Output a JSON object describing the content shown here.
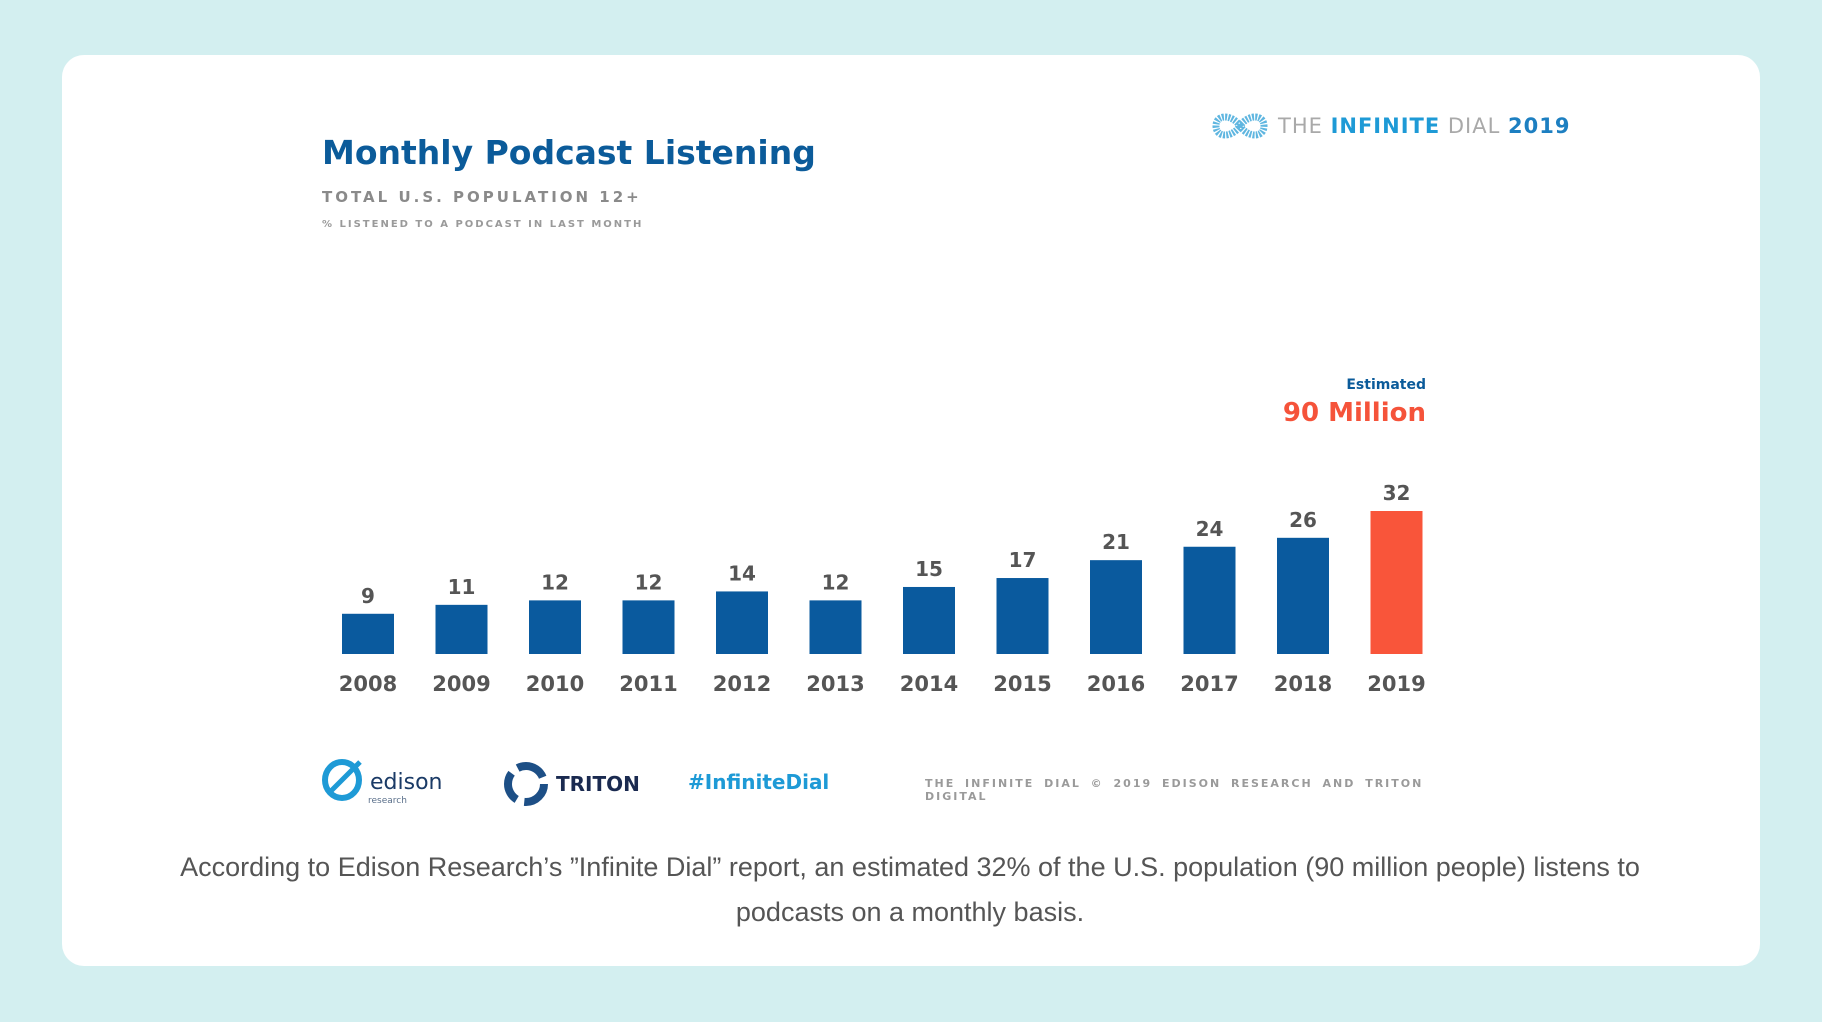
{
  "brand": {
    "the": "THE",
    "infinite": "INFINITE",
    "dial": "DIAL",
    "year": "2019"
  },
  "chart_data": {
    "type": "bar",
    "title": "Monthly Podcast Listening",
    "subtitle": "TOTAL U.S. POPULATION 12+",
    "ylabel": "% LISTENED TO A PODCAST IN LAST MONTH",
    "categories": [
      "2008",
      "2009",
      "2010",
      "2011",
      "2012",
      "2013",
      "2014",
      "2015",
      "2016",
      "2017",
      "2018",
      "2019"
    ],
    "values": [
      9,
      11,
      12,
      12,
      14,
      12,
      15,
      17,
      21,
      24,
      26,
      32
    ],
    "ylim": [
      0,
      32
    ],
    "grid": false,
    "bar_color": "#0a5a9e",
    "highlight_color": "#f9553a",
    "highlight_index": 11,
    "annotation": {
      "label": "Estimated",
      "value": "90 Million"
    }
  },
  "footer": {
    "edison": "edison",
    "edison_sub": "research",
    "triton": "TRITON",
    "hashtag": "#InfiniteDial",
    "copyright": "THE INFINITE DIAL   © 2019 EDISON RESEARCH AND TRITON DIGITAL"
  },
  "caption": "According to Edison Research’s ”Infinite Dial” report, an estimated 32% of the U.S. population (90 million people) listens to podcasts on a monthly basis."
}
